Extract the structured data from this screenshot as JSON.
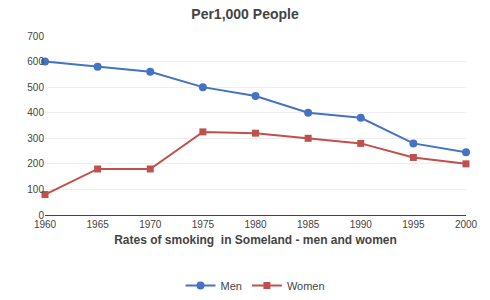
{
  "chart_data": {
    "type": "line",
    "title": "Per1,000 People",
    "xlabel": "Rates of smoking  in Someland - men and women",
    "x": [
      1960,
      1965,
      1970,
      1975,
      1980,
      1985,
      1990,
      1995,
      2000
    ],
    "series": [
      {
        "name": "Men",
        "color": "#4472C4",
        "marker": "circle",
        "values": [
          600,
          580,
          560,
          500,
          465,
          400,
          380,
          280,
          245
        ]
      },
      {
        "name": "Women",
        "color": "#C0504D",
        "marker": "square",
        "values": [
          80,
          180,
          180,
          325,
          320,
          300,
          280,
          225,
          200
        ]
      }
    ],
    "xlim": [
      1960,
      2000
    ],
    "xticks": [
      1960,
      1965,
      1970,
      1975,
      1980,
      1985,
      1990,
      1995,
      2000
    ],
    "ylim": [
      0,
      700
    ],
    "yticks": [
      0,
      100,
      200,
      300,
      400,
      500,
      600,
      700
    ],
    "grid": "y",
    "legend": "bottom"
  }
}
